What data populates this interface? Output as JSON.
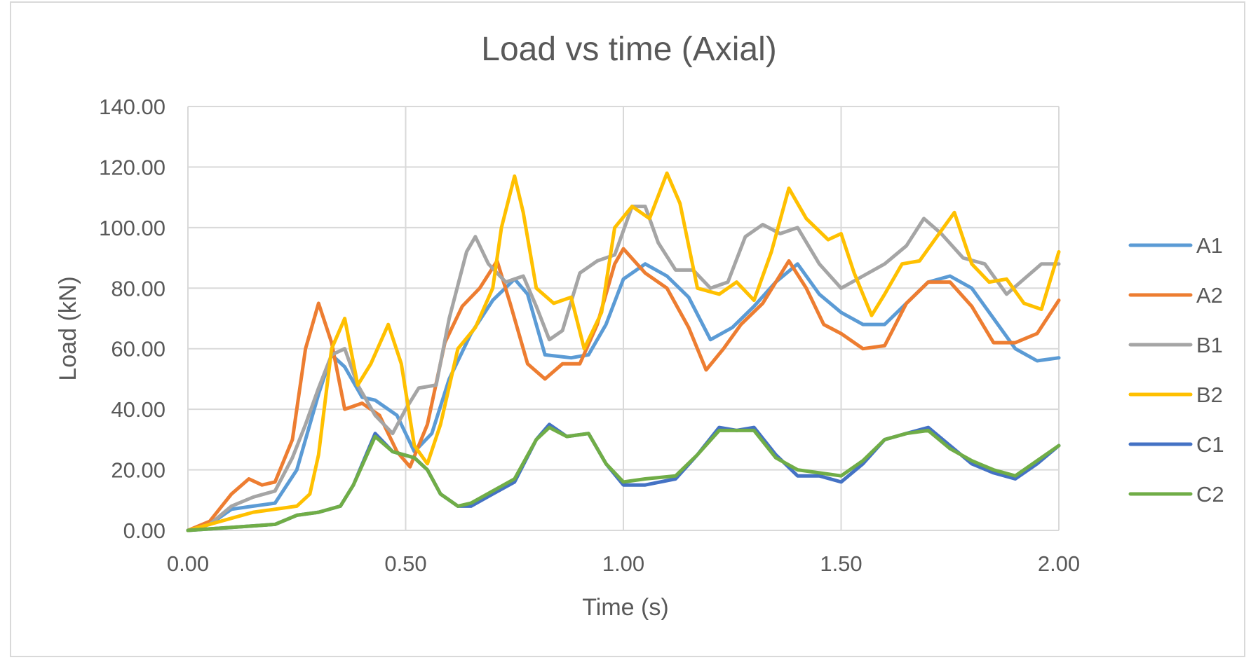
{
  "chart_data": {
    "type": "line",
    "title": "Load vs time (Axial)",
    "xlabel": "Time (s)",
    "ylabel": "Load (kN)",
    "xlim": [
      0,
      2
    ],
    "ylim": [
      0,
      140
    ],
    "x_ticks": [
      "0.00",
      "0.50",
      "1.00",
      "1.50",
      "2.00"
    ],
    "y_ticks": [
      "0.00",
      "20.00",
      "40.00",
      "60.00",
      "80.00",
      "100.00",
      "120.00",
      "140.00"
    ],
    "grid": true,
    "legend_position": "right",
    "series": [
      {
        "name": "A1",
        "color": "#5b9bd5",
        "points": [
          [
            0,
            0
          ],
          [
            0.05,
            2
          ],
          [
            0.1,
            7
          ],
          [
            0.15,
            8
          ],
          [
            0.2,
            9
          ],
          [
            0.25,
            20
          ],
          [
            0.3,
            45
          ],
          [
            0.33,
            58
          ],
          [
            0.36,
            54
          ],
          [
            0.4,
            44
          ],
          [
            0.43,
            43
          ],
          [
            0.48,
            38
          ],
          [
            0.52,
            26
          ],
          [
            0.56,
            32
          ],
          [
            0.6,
            50
          ],
          [
            0.65,
            65
          ],
          [
            0.7,
            76
          ],
          [
            0.75,
            83
          ],
          [
            0.78,
            78
          ],
          [
            0.82,
            58
          ],
          [
            0.88,
            57
          ],
          [
            0.92,
            58
          ],
          [
            0.96,
            68
          ],
          [
            1.0,
            83
          ],
          [
            1.05,
            88
          ],
          [
            1.1,
            84
          ],
          [
            1.15,
            77
          ],
          [
            1.2,
            63
          ],
          [
            1.25,
            67
          ],
          [
            1.3,
            74
          ],
          [
            1.35,
            82
          ],
          [
            1.4,
            88
          ],
          [
            1.45,
            78
          ],
          [
            1.5,
            72
          ],
          [
            1.55,
            68
          ],
          [
            1.6,
            68
          ],
          [
            1.65,
            75
          ],
          [
            1.7,
            82
          ],
          [
            1.75,
            84
          ],
          [
            1.8,
            80
          ],
          [
            1.85,
            70
          ],
          [
            1.9,
            60
          ],
          [
            1.95,
            56
          ],
          [
            2.0,
            57
          ]
        ]
      },
      {
        "name": "A2",
        "color": "#ed7d31",
        "points": [
          [
            0,
            0
          ],
          [
            0.05,
            3
          ],
          [
            0.1,
            12
          ],
          [
            0.14,
            17
          ],
          [
            0.17,
            15
          ],
          [
            0.2,
            16
          ],
          [
            0.24,
            30
          ],
          [
            0.27,
            60
          ],
          [
            0.3,
            75
          ],
          [
            0.33,
            62
          ],
          [
            0.36,
            40
          ],
          [
            0.4,
            42
          ],
          [
            0.44,
            38
          ],
          [
            0.48,
            26
          ],
          [
            0.51,
            21
          ],
          [
            0.55,
            35
          ],
          [
            0.59,
            62
          ],
          [
            0.63,
            74
          ],
          [
            0.67,
            80
          ],
          [
            0.71,
            89
          ],
          [
            0.74,
            75
          ],
          [
            0.78,
            55
          ],
          [
            0.82,
            50
          ],
          [
            0.86,
            55
          ],
          [
            0.9,
            55
          ],
          [
            0.94,
            68
          ],
          [
            0.98,
            88
          ],
          [
            1.0,
            93
          ],
          [
            1.05,
            85
          ],
          [
            1.1,
            80
          ],
          [
            1.15,
            67
          ],
          [
            1.19,
            53
          ],
          [
            1.23,
            60
          ],
          [
            1.27,
            68
          ],
          [
            1.32,
            75
          ],
          [
            1.38,
            89
          ],
          [
            1.42,
            80
          ],
          [
            1.46,
            68
          ],
          [
            1.5,
            65
          ],
          [
            1.55,
            60
          ],
          [
            1.6,
            61
          ],
          [
            1.65,
            75
          ],
          [
            1.7,
            82
          ],
          [
            1.75,
            82
          ],
          [
            1.8,
            74
          ],
          [
            1.85,
            62
          ],
          [
            1.9,
            62
          ],
          [
            1.95,
            65
          ],
          [
            2.0,
            76
          ]
        ]
      },
      {
        "name": "B1",
        "color": "#a5a5a5",
        "points": [
          [
            0,
            0
          ],
          [
            0.05,
            2
          ],
          [
            0.1,
            8
          ],
          [
            0.15,
            11
          ],
          [
            0.2,
            13
          ],
          [
            0.24,
            24
          ],
          [
            0.27,
            35
          ],
          [
            0.3,
            47
          ],
          [
            0.33,
            58
          ],
          [
            0.36,
            60
          ],
          [
            0.39,
            48
          ],
          [
            0.43,
            38
          ],
          [
            0.47,
            32
          ],
          [
            0.5,
            40
          ],
          [
            0.53,
            47
          ],
          [
            0.57,
            48
          ],
          [
            0.6,
            70
          ],
          [
            0.64,
            92
          ],
          [
            0.66,
            97
          ],
          [
            0.69,
            88
          ],
          [
            0.73,
            82
          ],
          [
            0.77,
            84
          ],
          [
            0.8,
            74
          ],
          [
            0.83,
            63
          ],
          [
            0.86,
            66
          ],
          [
            0.9,
            85
          ],
          [
            0.94,
            89
          ],
          [
            0.98,
            91
          ],
          [
            1.02,
            107
          ],
          [
            1.05,
            107
          ],
          [
            1.08,
            95
          ],
          [
            1.12,
            86
          ],
          [
            1.16,
            86
          ],
          [
            1.2,
            80
          ],
          [
            1.24,
            82
          ],
          [
            1.28,
            97
          ],
          [
            1.32,
            101
          ],
          [
            1.36,
            98
          ],
          [
            1.4,
            100
          ],
          [
            1.45,
            88
          ],
          [
            1.5,
            80
          ],
          [
            1.55,
            84
          ],
          [
            1.6,
            88
          ],
          [
            1.65,
            94
          ],
          [
            1.69,
            103
          ],
          [
            1.73,
            98
          ],
          [
            1.78,
            90
          ],
          [
            1.83,
            88
          ],
          [
            1.88,
            78
          ],
          [
            1.92,
            83
          ],
          [
            1.96,
            88
          ],
          [
            2.0,
            88
          ]
        ]
      },
      {
        "name": "B2",
        "color": "#ffc000",
        "points": [
          [
            0,
            0
          ],
          [
            0.05,
            2
          ],
          [
            0.1,
            4
          ],
          [
            0.15,
            6
          ],
          [
            0.2,
            7
          ],
          [
            0.25,
            8
          ],
          [
            0.28,
            12
          ],
          [
            0.3,
            25
          ],
          [
            0.33,
            60
          ],
          [
            0.36,
            70
          ],
          [
            0.39,
            48
          ],
          [
            0.42,
            55
          ],
          [
            0.46,
            68
          ],
          [
            0.49,
            55
          ],
          [
            0.52,
            28
          ],
          [
            0.55,
            22
          ],
          [
            0.58,
            35
          ],
          [
            0.62,
            60
          ],
          [
            0.66,
            67
          ],
          [
            0.7,
            80
          ],
          [
            0.72,
            100
          ],
          [
            0.75,
            117
          ],
          [
            0.77,
            105
          ],
          [
            0.8,
            80
          ],
          [
            0.84,
            75
          ],
          [
            0.88,
            77
          ],
          [
            0.91,
            60
          ],
          [
            0.95,
            72
          ],
          [
            0.98,
            100
          ],
          [
            1.02,
            107
          ],
          [
            1.06,
            103
          ],
          [
            1.1,
            118
          ],
          [
            1.13,
            108
          ],
          [
            1.17,
            80
          ],
          [
            1.22,
            78
          ],
          [
            1.26,
            82
          ],
          [
            1.3,
            76
          ],
          [
            1.34,
            92
          ],
          [
            1.38,
            113
          ],
          [
            1.42,
            103
          ],
          [
            1.47,
            96
          ],
          [
            1.5,
            98
          ],
          [
            1.53,
            85
          ],
          [
            1.57,
            71
          ],
          [
            1.6,
            78
          ],
          [
            1.64,
            88
          ],
          [
            1.68,
            89
          ],
          [
            1.72,
            97
          ],
          [
            1.76,
            105
          ],
          [
            1.8,
            88
          ],
          [
            1.84,
            82
          ],
          [
            1.88,
            83
          ],
          [
            1.92,
            75
          ],
          [
            1.96,
            73
          ],
          [
            2.0,
            92
          ]
        ]
      },
      {
        "name": "C1",
        "color": "#4472c4",
        "points": [
          [
            0,
            0
          ],
          [
            0.1,
            1
          ],
          [
            0.2,
            2
          ],
          [
            0.25,
            5
          ],
          [
            0.3,
            6
          ],
          [
            0.35,
            8
          ],
          [
            0.38,
            15
          ],
          [
            0.43,
            32
          ],
          [
            0.47,
            26
          ],
          [
            0.52,
            24
          ],
          [
            0.55,
            20
          ],
          [
            0.58,
            12
          ],
          [
            0.62,
            8
          ],
          [
            0.65,
            8
          ],
          [
            0.7,
            12
          ],
          [
            0.75,
            16
          ],
          [
            0.8,
            30
          ],
          [
            0.83,
            35
          ],
          [
            0.87,
            31
          ],
          [
            0.92,
            32
          ],
          [
            0.96,
            22
          ],
          [
            1.0,
            15
          ],
          [
            1.05,
            15
          ],
          [
            1.12,
            17
          ],
          [
            1.17,
            25
          ],
          [
            1.22,
            34
          ],
          [
            1.26,
            33
          ],
          [
            1.3,
            34
          ],
          [
            1.35,
            25
          ],
          [
            1.4,
            18
          ],
          [
            1.45,
            18
          ],
          [
            1.5,
            16
          ],
          [
            1.55,
            22
          ],
          [
            1.6,
            30
          ],
          [
            1.65,
            32
          ],
          [
            1.7,
            34
          ],
          [
            1.75,
            28
          ],
          [
            1.8,
            22
          ],
          [
            1.85,
            19
          ],
          [
            1.9,
            17
          ],
          [
            1.95,
            22
          ],
          [
            2.0,
            28
          ]
        ]
      },
      {
        "name": "C2",
        "color": "#70ad47",
        "points": [
          [
            0,
            0
          ],
          [
            0.1,
            1
          ],
          [
            0.2,
            2
          ],
          [
            0.25,
            5
          ],
          [
            0.3,
            6
          ],
          [
            0.35,
            8
          ],
          [
            0.38,
            15
          ],
          [
            0.43,
            31
          ],
          [
            0.47,
            26
          ],
          [
            0.52,
            24
          ],
          [
            0.55,
            20
          ],
          [
            0.58,
            12
          ],
          [
            0.62,
            8
          ],
          [
            0.65,
            9
          ],
          [
            0.7,
            13
          ],
          [
            0.75,
            17
          ],
          [
            0.8,
            30
          ],
          [
            0.83,
            34
          ],
          [
            0.87,
            31
          ],
          [
            0.92,
            32
          ],
          [
            0.96,
            22
          ],
          [
            1.0,
            16
          ],
          [
            1.05,
            17
          ],
          [
            1.12,
            18
          ],
          [
            1.17,
            25
          ],
          [
            1.22,
            33
          ],
          [
            1.26,
            33
          ],
          [
            1.3,
            33
          ],
          [
            1.35,
            24
          ],
          [
            1.4,
            20
          ],
          [
            1.45,
            19
          ],
          [
            1.5,
            18
          ],
          [
            1.55,
            23
          ],
          [
            1.6,
            30
          ],
          [
            1.65,
            32
          ],
          [
            1.7,
            33
          ],
          [
            1.75,
            27
          ],
          [
            1.8,
            23
          ],
          [
            1.85,
            20
          ],
          [
            1.9,
            18
          ],
          [
            1.95,
            23
          ],
          [
            2.0,
            28
          ]
        ]
      }
    ]
  }
}
